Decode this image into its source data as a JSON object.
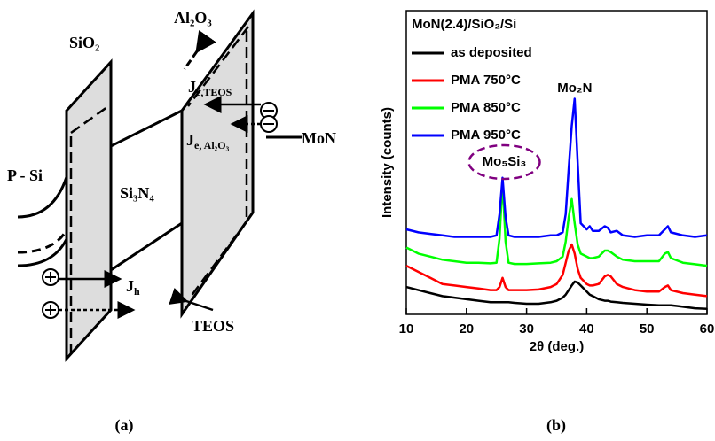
{
  "panel_a": {
    "labels": {
      "sio2": "SiO₂",
      "al2o3": "Al₂O₃",
      "mon": "MoN",
      "psi": "P - Si",
      "si3n4": "Si₃N₄",
      "teos": "TEOS"
    },
    "currents": {
      "je_teos": {
        "symbol": "J",
        "subscript": "e,TEOS"
      },
      "je_al2o3": {
        "symbol": "J",
        "subscript": "e, Al₂O₃"
      },
      "jh": {
        "symbol": "J",
        "subscript": "h"
      }
    }
  },
  "captions": [
    "(a)",
    "(b)"
  ],
  "chart_data": {
    "type": "line",
    "xlabel": "2θ (deg.)",
    "ylabel": "Intensity (counts)",
    "legend_title": "MoN(2.4)/SiO₂/Si",
    "legend_position": "upper left",
    "annotations": [
      "Mo₂N",
      "Mo₅Si₃"
    ],
    "xlim": [
      10,
      60
    ],
    "xticks": [
      10,
      20,
      30,
      40,
      50,
      60
    ],
    "ylim": [
      0,
      100
    ],
    "x": [
      10,
      12,
      14,
      16,
      18,
      20,
      22,
      24,
      25,
      25.5,
      26,
      26.5,
      27,
      28,
      30,
      32,
      34,
      35,
      36,
      36.5,
      37,
      37.5,
      38,
      38.5,
      39,
      40,
      40.5,
      41,
      42,
      43,
      43.5,
      44,
      45,
      46,
      48,
      50,
      52,
      53,
      53.5,
      54,
      56,
      58,
      60
    ],
    "series": [
      {
        "name": "as deposited",
        "color": "#000000",
        "values": [
          9,
          8,
          7,
          6,
          5.5,
          5,
          4.5,
          4,
          4,
          4,
          4,
          4,
          4,
          3.8,
          3.5,
          3.5,
          4,
          4.5,
          5.5,
          6.5,
          8,
          9.5,
          10.8,
          10.5,
          9.5,
          7.5,
          6.5,
          6,
          5,
          4.5,
          4.5,
          4.2,
          4,
          3.8,
          3.5,
          3.2,
          3,
          3,
          3,
          3,
          2.5,
          2,
          1.8
        ]
      },
      {
        "name": "PMA 750°C",
        "color": "#ff0000",
        "values": [
          16,
          14,
          12,
          10,
          9.5,
          9,
          8.5,
          8,
          8,
          9,
          12,
          9,
          8,
          8,
          8,
          8.2,
          9,
          10,
          13,
          17,
          21,
          23,
          20,
          15,
          12,
          10,
          9.5,
          9.5,
          10,
          12.5,
          13,
          12.5,
          10,
          9,
          8,
          7.5,
          7.5,
          9,
          9.5,
          8,
          7,
          6.5,
          6
        ]
      },
      {
        "name": "PMA 850°C",
        "color": "#00ff00",
        "values": [
          22,
          20,
          19,
          18,
          17.5,
          17,
          17,
          16.8,
          17,
          25,
          44,
          24,
          17,
          16.6,
          16.6,
          16.8,
          17,
          17.5,
          19,
          24,
          32,
          38,
          30,
          23,
          20,
          19,
          18.5,
          18.5,
          19,
          21,
          21,
          20.5,
          19,
          18,
          17.5,
          17.5,
          17.5,
          20,
          20.5,
          18.5,
          17,
          16.5,
          16
        ]
      },
      {
        "name": "PMA 950°C",
        "color": "#0000ff",
        "values": [
          28,
          27,
          26.5,
          26,
          25.5,
          25.5,
          25.5,
          25.5,
          26,
          33,
          45,
          32,
          26,
          25.5,
          25.5,
          25.5,
          26,
          26,
          27,
          33,
          48,
          62,
          71,
          50,
          30,
          28,
          29,
          27.5,
          27.5,
          29,
          28.5,
          27,
          27.5,
          26,
          25.5,
          26,
          26,
          28,
          29,
          27,
          26,
          25.5,
          26
        ]
      }
    ]
  }
}
